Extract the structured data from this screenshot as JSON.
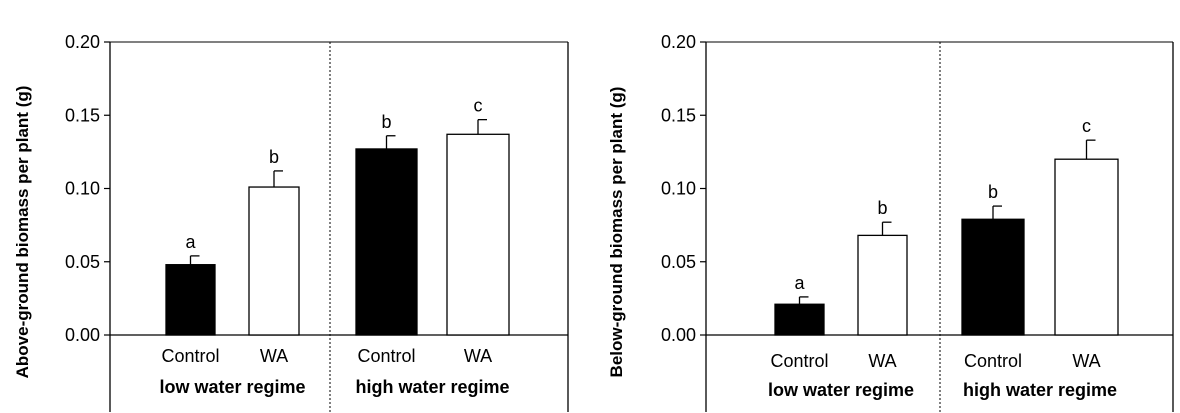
{
  "chart_data": [
    {
      "type": "bar",
      "ylabel": "Above-ground biomass per plant (g)",
      "ylim": [
        0,
        0.2
      ],
      "yticks": [
        "0.00",
        "0.05",
        "0.10",
        "0.15",
        "0.20"
      ],
      "groups": [
        "low water regime",
        "high water regime"
      ],
      "categories": [
        "Control",
        "WA"
      ],
      "bars": [
        {
          "group": "low water regime",
          "category": "Control",
          "value": 0.048,
          "error": 0.006,
          "letter": "a",
          "fill": "#000000"
        },
        {
          "group": "low water regime",
          "category": "WA",
          "value": 0.101,
          "error": 0.011,
          "letter": "b",
          "fill": "#ffffff"
        },
        {
          "group": "high water regime",
          "category": "Control",
          "value": 0.127,
          "error": 0.009,
          "letter": "b",
          "fill": "#000000"
        },
        {
          "group": "high water regime",
          "category": "WA",
          "value": 0.137,
          "error": 0.01,
          "letter": "c",
          "fill": "#ffffff"
        }
      ]
    },
    {
      "type": "bar",
      "ylabel": "Below-ground biomass per plant (g)",
      "ylim": [
        0,
        0.2
      ],
      "yticks": [
        "0.00",
        "0.05",
        "0.10",
        "0.15",
        "0.20"
      ],
      "groups": [
        "low water regime",
        "high water regime"
      ],
      "categories": [
        "Control",
        "WA"
      ],
      "bars": [
        {
          "group": "low water regime",
          "category": "Control",
          "value": 0.021,
          "error": 0.005,
          "letter": "a",
          "fill": "#000000"
        },
        {
          "group": "low water regime",
          "category": "WA",
          "value": 0.068,
          "error": 0.009,
          "letter": "b",
          "fill": "#ffffff"
        },
        {
          "group": "high water regime",
          "category": "Control",
          "value": 0.079,
          "error": 0.009,
          "letter": "b",
          "fill": "#000000"
        },
        {
          "group": "high water regime",
          "category": "WA",
          "value": 0.12,
          "error": 0.013,
          "letter": "c",
          "fill": "#ffffff"
        }
      ]
    }
  ]
}
